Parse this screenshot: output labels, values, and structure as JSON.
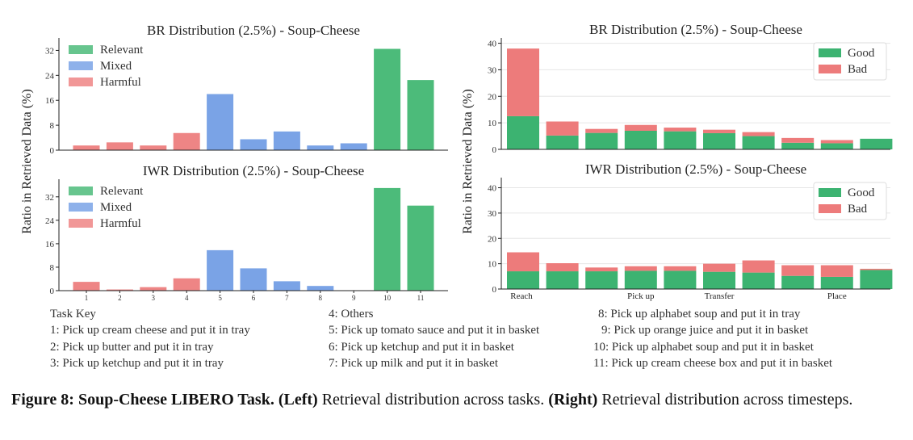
{
  "ylabel": "Ratio in Retrieved Data (%)",
  "colors": {
    "relevant": "#4cbb7a",
    "mixed": "#7aa3e6",
    "harmful": "#ee8585",
    "good": "#3cb371",
    "bad": "#ed7b7b",
    "axis": "#222222"
  },
  "chart_data": [
    {
      "id": "left-br",
      "type": "bar",
      "title": "BR Distribution (2.5%) - Soup-Cheese",
      "categories": [
        "1",
        "2",
        "3",
        "4",
        "5",
        "6",
        "7",
        "8",
        "9",
        "10",
        "11"
      ],
      "values": [
        1.5,
        2.5,
        1.5,
        5.5,
        18,
        3.5,
        6,
        1.5,
        2.2,
        32.5,
        22.5
      ],
      "bar_groups": [
        "harmful",
        "harmful",
        "harmful",
        "harmful",
        "mixed",
        "mixed",
        "mixed",
        "mixed",
        "mixed",
        "relevant",
        "relevant"
      ],
      "ylim": [
        0,
        36
      ],
      "yticks": [
        0,
        8,
        16,
        24,
        32
      ],
      "show_xticks": false,
      "legend": [
        "Relevant",
        "Mixed",
        "Harmful"
      ],
      "legend_position": "top-left"
    },
    {
      "id": "left-iwr",
      "type": "bar",
      "title": "IWR Distribution (2.5%) - Soup-Cheese",
      "categories": [
        "1",
        "2",
        "3",
        "4",
        "5",
        "6",
        "7",
        "8",
        "9",
        "10",
        "11"
      ],
      "values": [
        3,
        0.4,
        1.2,
        4.2,
        13.8,
        7.6,
        3.2,
        1.6,
        0,
        35,
        29
      ],
      "bar_groups": [
        "harmful",
        "harmful",
        "harmful",
        "harmful",
        "mixed",
        "mixed",
        "mixed",
        "mixed",
        "mixed",
        "relevant",
        "relevant"
      ],
      "ylim": [
        0,
        38
      ],
      "yticks": [
        0,
        8,
        16,
        24,
        32
      ],
      "show_xticks": true,
      "legend": [
        "Relevant",
        "Mixed",
        "Harmful"
      ],
      "legend_position": "top-left"
    },
    {
      "id": "right-br",
      "type": "bar",
      "title": "BR Distribution (2.5%) - Soup-Cheese",
      "stacked": true,
      "n_bins": 10,
      "series": [
        {
          "name": "Good",
          "values": [
            12.5,
            5.2,
            6.2,
            7,
            6.8,
            6.1,
            5,
            2.5,
            2.3,
            4
          ]
        },
        {
          "name": "Bad",
          "values": [
            25.5,
            5.3,
            1.5,
            2.2,
            1.4,
            1.3,
            1.5,
            1.8,
            1.2,
            0
          ]
        }
      ],
      "ylim": [
        0,
        42
      ],
      "yticks": [
        0,
        10,
        20,
        30,
        40
      ],
      "show_xticks": false,
      "legend_position": "top-right"
    },
    {
      "id": "right-iwr",
      "type": "bar",
      "title": "IWR Distribution (2.5%) - Soup-Cheese",
      "stacked": true,
      "n_bins": 10,
      "series": [
        {
          "name": "Good",
          "values": [
            7,
            7,
            7,
            7.2,
            7.2,
            6.8,
            6.5,
            5.2,
            4.8,
            7.5
          ]
        },
        {
          "name": "Bad",
          "values": [
            7.5,
            3.2,
            1.5,
            1.8,
            1.8,
            3.2,
            4.8,
            4.2,
            4.6,
            0.5
          ]
        }
      ],
      "ylim": [
        0,
        44
      ],
      "yticks": [
        0,
        10,
        20,
        30,
        40
      ],
      "phase_labels": [
        {
          "bin": 0,
          "label": "Reach"
        },
        {
          "bin": 3,
          "label": "Pick up"
        },
        {
          "bin": 5,
          "label": "Transfer"
        },
        {
          "bin": 8,
          "label": "Place"
        }
      ],
      "legend_position": "top-right"
    }
  ],
  "task_key": {
    "title": "Task Key",
    "col1": [
      "1: Pick up cream cheese and put it in tray",
      "2: Pick up butter and put it in tray",
      "3: Pick up ketchup and put it in tray"
    ],
    "col2": [
      "4: Others",
      "5: Pick up tomato sauce and put it in basket",
      "6: Pick up ketchup and put it in basket",
      "7: Pick up milk and put it in basket"
    ],
    "col3": [
      "8: Pick up alphabet soup and put it in tray",
      "9: Pick up orange juice and put it in basket",
      "10: Pick up alphabet soup and put it in basket",
      "11: Pick up cream cheese box and put it in basket"
    ]
  },
  "caption": {
    "label": "Figure 8:",
    "title": "Soup-Cheese LIBERO Task.",
    "left_tag": "(Left)",
    "left_text": "Retrieval distribution across tasks.",
    "right_tag": "(Right)",
    "right_text": "Retrieval distribution across timesteps."
  }
}
